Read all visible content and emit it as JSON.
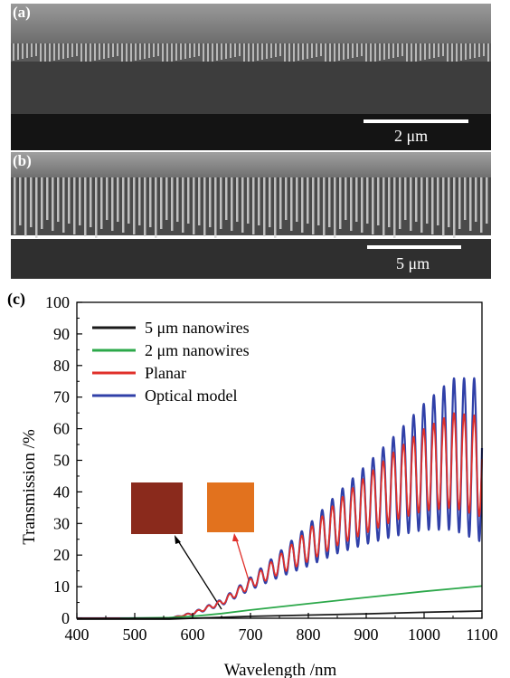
{
  "panel_a": {
    "label": "(a)",
    "scale_bar": "2 μm"
  },
  "panel_b": {
    "label": "(b)",
    "scale_bar": "5 μm"
  },
  "panel_c": {
    "label": "(c)"
  },
  "colors": {
    "black_series": "#1a1a1a",
    "green_series": "#2ca84a",
    "red_series": "#e0302a",
    "blue_series": "#3040a8",
    "inset_left": "#8a2a1c",
    "inset_right": "#e2721e"
  },
  "chart_data": {
    "type": "line",
    "xlabel": "Wavelength /nm",
    "ylabel": "Transmission /%",
    "xlim": [
      400,
      1100
    ],
    "ylim": [
      0,
      100
    ],
    "xticks": [
      400,
      500,
      600,
      700,
      800,
      900,
      1000,
      1100
    ],
    "yticks": [
      0,
      10,
      20,
      30,
      40,
      50,
      60,
      70,
      80,
      90,
      100
    ],
    "legend_position": "top-left",
    "series": [
      {
        "name": "5 μm nanowires",
        "color": "#1a1a1a",
        "x": [
          400,
          560,
          600,
          650,
          700,
          800,
          900,
          1000,
          1100
        ],
        "y": [
          -0.3,
          -0.3,
          0,
          0.3,
          0.6,
          1.0,
          1.4,
          1.9,
          2.3
        ]
      },
      {
        "name": "2 μm nanowires",
        "color": "#2ca84a",
        "x": [
          475,
          560,
          600,
          650,
          700,
          800,
          900,
          1000,
          1100
        ],
        "y": [
          0,
          0.2,
          0.6,
          1.5,
          2.6,
          4.6,
          6.6,
          8.5,
          10.2
        ]
      },
      {
        "name": "Planar",
        "color": "#e0302a",
        "x": [
          400,
          560,
          600,
          650,
          700,
          750,
          800,
          850,
          900,
          950,
          1000,
          1050,
          1100
        ],
        "y": [
          0,
          0,
          1.5,
          5,
          11,
          17,
          23,
          30,
          36,
          42,
          47,
          50,
          48
        ],
        "oscillation_amplitude": [
          0,
          0,
          0.3,
          0.8,
          1.5,
          3,
          5,
          7,
          9,
          11,
          13,
          15,
          16
        ]
      },
      {
        "name": "Optical model",
        "color": "#3040a8",
        "x": [
          400,
          560,
          600,
          650,
          700,
          750,
          800,
          850,
          900,
          950,
          1000,
          1050,
          1100
        ],
        "y": [
          0,
          0,
          1.5,
          5,
          11,
          17,
          23,
          30,
          36,
          42,
          48,
          52,
          50
        ],
        "oscillation_amplitude": [
          0,
          0,
          0.4,
          1,
          2,
          4,
          6.5,
          9.5,
          12.5,
          16,
          20,
          24,
          26
        ]
      }
    ]
  }
}
